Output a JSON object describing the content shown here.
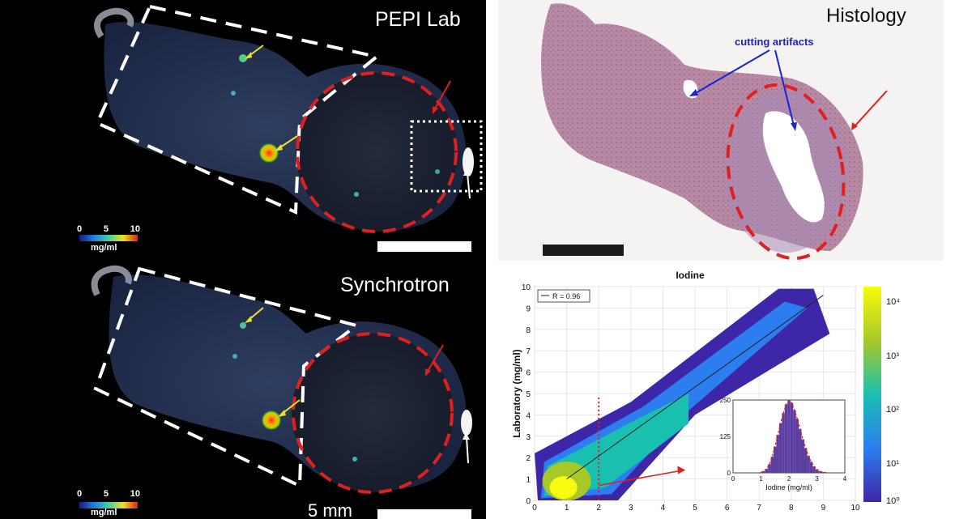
{
  "panels": {
    "pepi": {
      "title": "PEPI Lab",
      "colorbar": {
        "ticks": [
          "0",
          "5",
          "10"
        ],
        "unit": "mg/ml"
      }
    },
    "sync": {
      "title": "Synchrotron",
      "colorbar": {
        "ticks": [
          "0",
          "5",
          "10"
        ],
        "unit": "mg/ml"
      },
      "scale_label": "5 mm"
    },
    "histology": {
      "title": "Histology",
      "annotation": "cutting artifacts"
    }
  },
  "colors": {
    "red_outline": "#e02020",
    "white_outline": "#ffffff",
    "yellow_arrow": "#e8e030",
    "annotation_blue": "#1a23d6",
    "tissue_pink": "#b98aa6"
  },
  "chart_data": {
    "type": "heatmap",
    "title": "Iodine",
    "xlabel": "",
    "ylabel": "Laboratory (mg/ml)",
    "xlim": [
      0,
      10
    ],
    "ylim": [
      0,
      10
    ],
    "xticks": [
      "0",
      "1",
      "2",
      "3",
      "4",
      "5",
      "6",
      "7",
      "8",
      "9",
      "10"
    ],
    "yticks": [
      "0",
      "1",
      "2",
      "3",
      "4",
      "5",
      "6",
      "7",
      "8",
      "9",
      "10"
    ],
    "legend": "R = 0.96",
    "fit_line": {
      "x": [
        1,
        9
      ],
      "y": [
        1,
        9.6
      ]
    },
    "threshold_x": 2,
    "colorbar": {
      "scale": "log",
      "ticks": [
        "10^4",
        "10^3",
        "10^2",
        "10^1",
        "10^0"
      ],
      "range": [
        1,
        20000
      ]
    },
    "inset": {
      "type": "bar",
      "xlabel": "Iodine (mg/ml)",
      "xlim": [
        0,
        4
      ],
      "xticks": [
        "0",
        "1",
        "2",
        "3",
        "4"
      ],
      "yticks": [
        "0",
        "125",
        "250"
      ],
      "ylim": [
        0,
        250
      ],
      "bin_centers": [
        1.0,
        1.1,
        1.2,
        1.3,
        1.4,
        1.5,
        1.6,
        1.7,
        1.8,
        1.9,
        2.0,
        2.1,
        2.2,
        2.3,
        2.4,
        2.5,
        2.6,
        2.7,
        2.8,
        2.9,
        3.0,
        3.1,
        3.2,
        3.3,
        3.4
      ],
      "values": [
        2,
        6,
        14,
        30,
        55,
        90,
        130,
        170,
        205,
        235,
        248,
        240,
        215,
        185,
        150,
        115,
        85,
        58,
        38,
        22,
        12,
        6,
        3,
        1,
        1
      ]
    }
  }
}
